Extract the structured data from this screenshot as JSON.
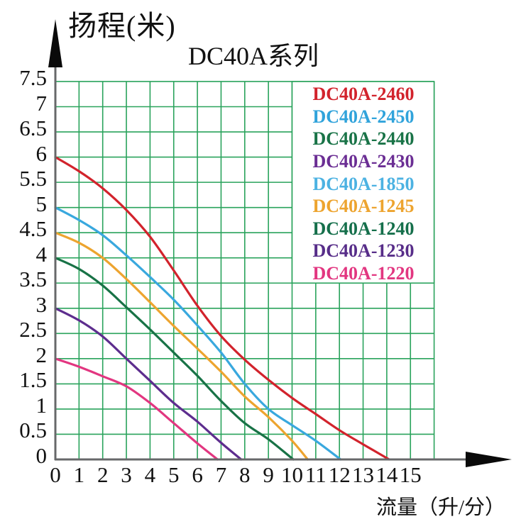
{
  "header": {
    "y_axis_label": "扬程(米)",
    "title": "DC40A系列",
    "x_axis_label": "流量（升/分）"
  },
  "chart_data": {
    "type": "line",
    "title": "DC40A系列",
    "ylabel": "扬程(米)",
    "xlabel": "流量（升/分）",
    "xlim": [
      0,
      16
    ],
    "ylim": [
      0,
      7.5
    ],
    "grid": true,
    "grid_step_x": 1,
    "grid_step_y": 0.5,
    "grid_color": "#2aa35c",
    "axis_color": "#67686a",
    "arrow_color": "#0a0a0a",
    "x_ticks": [
      "0",
      "1",
      "2",
      "3",
      "4",
      "5",
      "6",
      "7",
      "8",
      "9",
      "10",
      "11",
      "12",
      "13",
      "14",
      "15"
    ],
    "y_ticks": [
      "0",
      "0.5",
      "1",
      "1.5",
      "2",
      "2.5",
      "3",
      "3.5",
      "4",
      "4.5",
      "5",
      "5.5",
      "6",
      "6.5",
      "7",
      "7.5"
    ],
    "legend_position": "top-right",
    "legend": [
      {
        "label": "DC40A-2460",
        "color": "#d2232c"
      },
      {
        "label": "DC40A-2450",
        "color": "#30a3db"
      },
      {
        "label": "DC40A-2440",
        "color": "#197347"
      },
      {
        "label": "DC40A-2430",
        "color": "#6b2e94"
      },
      {
        "label": "DC40A-1850",
        "color": "#4cb2e2"
      },
      {
        "label": "DC40A-1245",
        "color": "#eda42f"
      },
      {
        "label": "DC40A-1240",
        "color": "#156f4b"
      },
      {
        "label": "DC40A-1230",
        "color": "#572d89"
      },
      {
        "label": "DC40A-1220",
        "color": "#e23680"
      }
    ],
    "series": [
      {
        "name": "DC40A-2460",
        "models": [
          "DC40A-2460"
        ],
        "color": "#d2232c",
        "points": [
          [
            0,
            6
          ],
          [
            1,
            5.72
          ],
          [
            2,
            5.38
          ],
          [
            3,
            4.95
          ],
          [
            4,
            4.42
          ],
          [
            5,
            3.75
          ],
          [
            6,
            3.05
          ],
          [
            7,
            2.45
          ],
          [
            8,
            1.98
          ],
          [
            9,
            1.58
          ],
          [
            10,
            1.22
          ],
          [
            11,
            0.9
          ],
          [
            12,
            0.58
          ],
          [
            13,
            0.3
          ],
          [
            14.1,
            0
          ]
        ]
      },
      {
        "name": "DC40A-2450 / DC40A-1850",
        "models": [
          "DC40A-2450",
          "DC40A-1850"
        ],
        "color": "#39a8de",
        "points": [
          [
            0,
            5
          ],
          [
            1,
            4.75
          ],
          [
            2,
            4.45
          ],
          [
            3,
            4.05
          ],
          [
            4,
            3.62
          ],
          [
            5,
            3.17
          ],
          [
            6,
            2.66
          ],
          [
            7,
            2.12
          ],
          [
            8,
            1.5
          ],
          [
            9,
            1.0
          ],
          [
            10,
            0.68
          ],
          [
            11,
            0.37
          ],
          [
            12.05,
            0
          ]
        ]
      },
      {
        "name": "DC40A-1245",
        "models": [
          "DC40A-1245"
        ],
        "color": "#eda42f",
        "points": [
          [
            0,
            4.5
          ],
          [
            1,
            4.3
          ],
          [
            2,
            4.0
          ],
          [
            3,
            3.58
          ],
          [
            4,
            3.12
          ],
          [
            5,
            2.65
          ],
          [
            6,
            2.2
          ],
          [
            7,
            1.74
          ],
          [
            8,
            1.25
          ],
          [
            9,
            0.84
          ],
          [
            10,
            0.37
          ],
          [
            10.66,
            0
          ]
        ]
      },
      {
        "name": "DC40A-2440 / DC40A-1240",
        "models": [
          "DC40A-2440",
          "DC40A-1240"
        ],
        "color": "#187246",
        "points": [
          [
            0,
            4
          ],
          [
            1,
            3.78
          ],
          [
            2,
            3.45
          ],
          [
            3,
            3.02
          ],
          [
            4,
            2.58
          ],
          [
            5,
            2.12
          ],
          [
            6,
            1.66
          ],
          [
            7,
            1.16
          ],
          [
            8,
            0.72
          ],
          [
            9,
            0.4
          ],
          [
            10.05,
            0
          ]
        ]
      },
      {
        "name": "DC40A-2430 / DC40A-1230",
        "models": [
          "DC40A-2430",
          "DC40A-1230"
        ],
        "color": "#5d2d8e",
        "points": [
          [
            0,
            3
          ],
          [
            1,
            2.76
          ],
          [
            2,
            2.44
          ],
          [
            3,
            2.0
          ],
          [
            4,
            1.56
          ],
          [
            5,
            1.12
          ],
          [
            6,
            0.75
          ],
          [
            7,
            0.33
          ],
          [
            7.85,
            0
          ]
        ]
      },
      {
        "name": "DC40A-1220",
        "models": [
          "DC40A-1220"
        ],
        "color": "#e23680",
        "points": [
          [
            0,
            2
          ],
          [
            1,
            1.84
          ],
          [
            2,
            1.65
          ],
          [
            3,
            1.45
          ],
          [
            4,
            1.12
          ],
          [
            5,
            0.72
          ],
          [
            6,
            0.32
          ],
          [
            6.85,
            0
          ]
        ]
      }
    ]
  }
}
